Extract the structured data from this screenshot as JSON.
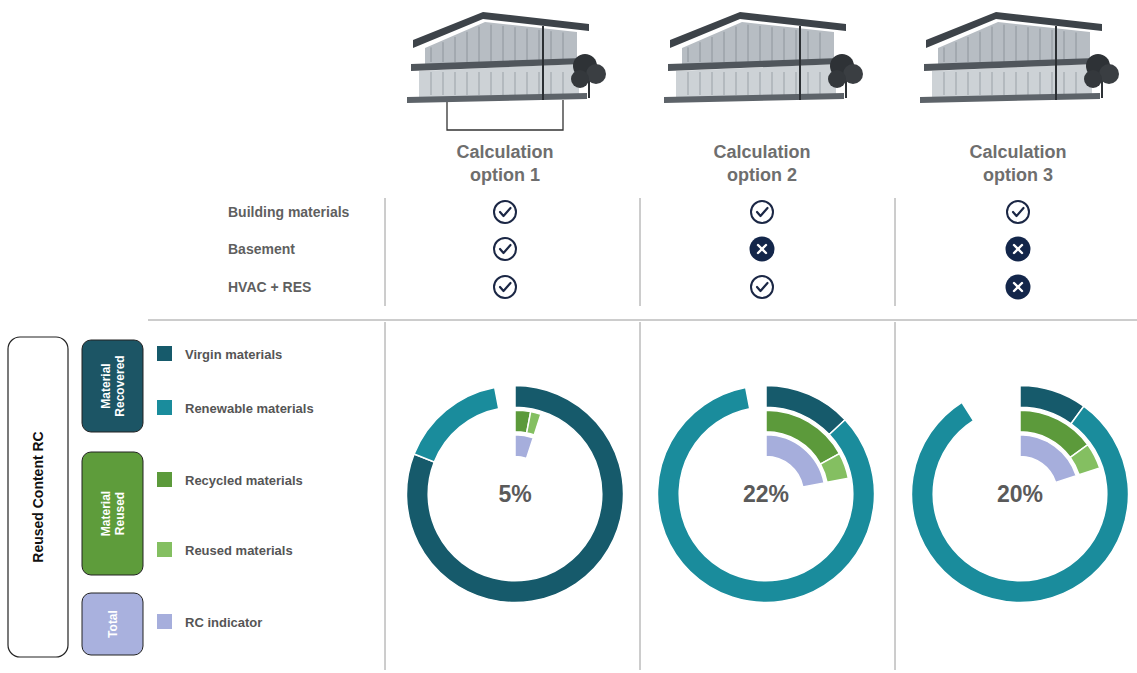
{
  "header": {
    "rows": [
      "Building materials",
      "Basement",
      "HVAC + RES"
    ]
  },
  "key": {
    "title": "Reused Content RC",
    "groups": [
      {
        "label": "Material Recovered",
        "color": "#1c5565",
        "items": [
          {
            "name": "Virgin materials",
            "color": "#165a6b"
          },
          {
            "name": "Renewable materials",
            "color": "#1a8c9c"
          }
        ]
      },
      {
        "label": "Material Reused",
        "color": "#5e9c3b",
        "items": [
          {
            "name": "Recycled materials",
            "color": "#5c9a3b"
          },
          {
            "name": "Reused materials",
            "color": "#84bf61"
          }
        ]
      },
      {
        "label": "Total",
        "color": "#a9b1de",
        "items": [
          {
            "name": "RC indicator",
            "color": "#a6aedc"
          }
        ]
      }
    ]
  },
  "chart_data": [
    {
      "type": "donut",
      "title": "Calculation option 1",
      "included": [
        true,
        true,
        true
      ],
      "center_label": "5%",
      "ylim": [
        0,
        100
      ],
      "tick_labels": false,
      "series": [
        {
          "name": "Virgin materials",
          "values": [
            81
          ]
        },
        {
          "name": "Renewable materials",
          "values": [
            16
          ]
        },
        {
          "name": "Recycled materials",
          "values": [
            3
          ]
        },
        {
          "name": "Reused materials",
          "values": [
            2
          ]
        },
        {
          "name": "RC indicator",
          "values": [
            5
          ]
        }
      ]
    },
    {
      "type": "donut",
      "title": "Calculation option 2",
      "included": [
        true,
        false,
        true
      ],
      "center_label": "22%",
      "ylim": [
        0,
        100
      ],
      "tick_labels": false,
      "series": [
        {
          "name": "Virgin materials",
          "values": [
            13
          ]
        },
        {
          "name": "Renewable materials",
          "values": [
            84
          ]
        },
        {
          "name": "Recycled materials",
          "values": [
            17
          ]
        },
        {
          "name": "Reused materials",
          "values": [
            5
          ]
        },
        {
          "name": "RC indicator",
          "values": [
            22
          ]
        }
      ]
    },
    {
      "type": "donut",
      "title": "Calculation option 3",
      "included": [
        true,
        false,
        false
      ],
      "center_label": "20%",
      "ylim": [
        0,
        100
      ],
      "tick_labels": false,
      "series": [
        {
          "name": "Virgin materials",
          "values": [
            10
          ]
        },
        {
          "name": "Renewable materials",
          "values": [
            81
          ]
        },
        {
          "name": "Recycled materials",
          "values": [
            15
          ]
        },
        {
          "name": "Reused materials",
          "values": [
            5
          ]
        },
        {
          "name": "RC indicator",
          "values": [
            20
          ]
        }
      ]
    }
  ]
}
